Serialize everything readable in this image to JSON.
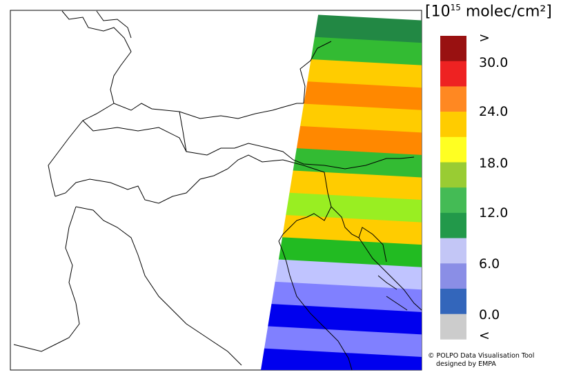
{
  "legend": {
    "unit_prefix": "[10",
    "unit_exponent": "15",
    "unit_suffix": " molec/cm²]",
    "colors": [
      "#cccccc",
      "#3366bb",
      "#8a8ee6",
      "#c3c6f6",
      "#22994a",
      "#44bb55",
      "#99cc33",
      "#ffff22",
      "#ffcc00",
      "#ff8822",
      "#ee2222",
      "#991111"
    ],
    "tick_labels": [
      ">",
      "30.0",
      "24.0",
      "18.0",
      "12.0",
      "6.0",
      "0.0",
      "<"
    ]
  },
  "map": {
    "swath_colors": [
      "#228844",
      "#33bb33",
      "#ffcc00",
      "#ff8800",
      "#ffcc00",
      "#ff8800",
      "#33bb33",
      "#ffcc00",
      "#99ee22",
      "#ffcc00",
      "#22bb22",
      "#c0c4ff",
      "#8080ff",
      "#0000ee",
      "#8080ff",
      "#0000ee"
    ]
  },
  "credit": {
    "line1": "© POLPO Data Visualisation Tool",
    "line2": "designed by EMPA"
  }
}
